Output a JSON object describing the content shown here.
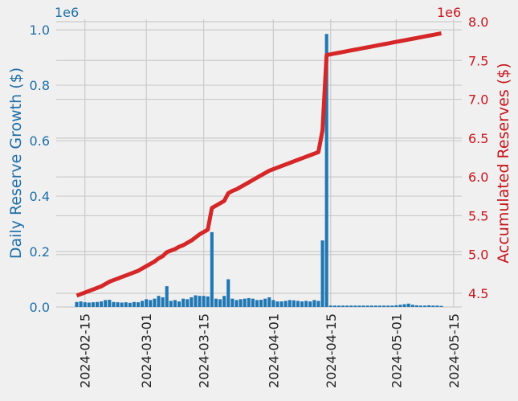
{
  "chart_data": {
    "type": "bar",
    "ylabel": "Daily Reserve Growth ($)",
    "y2label": "Accumulated Reserves ($)",
    "y_offset_label": "1e6",
    "y2_offset_label": "1e6",
    "x": [
      "2024-02-13",
      "2024-02-14",
      "2024-02-15",
      "2024-02-16",
      "2024-02-17",
      "2024-02-18",
      "2024-02-19",
      "2024-02-20",
      "2024-02-21",
      "2024-02-22",
      "2024-02-23",
      "2024-02-24",
      "2024-02-25",
      "2024-02-26",
      "2024-02-27",
      "2024-02-28",
      "2024-02-29",
      "2024-03-01",
      "2024-03-02",
      "2024-03-03",
      "2024-03-04",
      "2024-03-05",
      "2024-03-06",
      "2024-03-07",
      "2024-03-08",
      "2024-03-09",
      "2024-03-10",
      "2024-03-11",
      "2024-03-12",
      "2024-03-13",
      "2024-03-14",
      "2024-03-15",
      "2024-03-16",
      "2024-03-17",
      "2024-03-18",
      "2024-03-19",
      "2024-03-20",
      "2024-03-21",
      "2024-03-22",
      "2024-03-23",
      "2024-03-24",
      "2024-03-25",
      "2024-03-26",
      "2024-03-27",
      "2024-03-28",
      "2024-03-29",
      "2024-03-30",
      "2024-03-31",
      "2024-04-01",
      "2024-04-02",
      "2024-04-03",
      "2024-04-04",
      "2024-04-05",
      "2024-04-06",
      "2024-04-07",
      "2024-04-08",
      "2024-04-09",
      "2024-04-10",
      "2024-04-11",
      "2024-04-12",
      "2024-04-13",
      "2024-04-14",
      "2024-04-15",
      "2024-04-16",
      "2024-04-17",
      "2024-04-18",
      "2024-04-19",
      "2024-04-20",
      "2024-04-21",
      "2024-04-22",
      "2024-04-23",
      "2024-04-24",
      "2024-04-25",
      "2024-04-26",
      "2024-04-27",
      "2024-04-28",
      "2024-04-29",
      "2024-04-30",
      "2024-05-01",
      "2024-05-02",
      "2024-05-03",
      "2024-05-04",
      "2024-05-05",
      "2024-05-06",
      "2024-05-07",
      "2024-05-08",
      "2024-05-09",
      "2024-05-10",
      "2024-05-11",
      "2024-05-12"
    ],
    "series": [
      {
        "type": "bar",
        "color": "#1f77b4",
        "values": [
          18000,
          20000,
          17000,
          16000,
          17000,
          18000,
          20000,
          25000,
          26000,
          18000,
          17000,
          16000,
          17000,
          15000,
          18000,
          17000,
          22000,
          28000,
          25000,
          30000,
          40000,
          35000,
          75000,
          22000,
          25000,
          20000,
          30000,
          28000,
          35000,
          42000,
          40000,
          40000,
          38000,
          270000,
          30000,
          28000,
          40000,
          100000,
          30000,
          25000,
          28000,
          30000,
          32000,
          30000,
          25000,
          26000,
          30000,
          35000,
          25000,
          20000,
          20000,
          22000,
          25000,
          24000,
          22000,
          20000,
          22000,
          20000,
          25000,
          22000,
          240000,
          985000,
          5000,
          5000,
          5000,
          5000,
          5000,
          5000,
          5000,
          5000,
          5000,
          5000,
          5000,
          5000,
          5000,
          5000,
          5000,
          5000,
          6000,
          8000,
          10000,
          12000,
          8000,
          6000,
          5000,
          5000,
          6000,
          5000,
          5000,
          4000
        ]
      },
      {
        "type": "line",
        "axis": "y2",
        "color": "#d62728",
        "values": [
          4470000,
          4490000,
          4510000,
          4530000,
          4550000,
          4570000,
          4590000,
          4620000,
          4650000,
          4670000,
          4690000,
          4710000,
          4730000,
          4750000,
          4770000,
          4790000,
          4820000,
          4850000,
          4880000,
          4910000,
          4950000,
          4980000,
          5030000,
          5050000,
          5070000,
          5100000,
          5120000,
          5150000,
          5180000,
          5220000,
          5260000,
          5290000,
          5320000,
          5600000,
          5630000,
          5660000,
          5690000,
          5790000,
          5820000,
          5840000,
          5870000,
          5900000,
          5930000,
          5960000,
          5990000,
          6020000,
          6050000,
          6080000,
          6100000,
          6120000,
          6140000,
          6160000,
          6180000,
          6200000,
          6220000,
          6240000,
          6260000,
          6280000,
          6300000,
          6320000,
          6600000,
          7570000,
          7580000,
          7590000,
          7600000,
          7610000,
          7620000,
          7630000,
          7640000,
          7650000,
          7660000,
          7670000,
          7680000,
          7690000,
          7700000,
          7710000,
          7720000,
          7730000,
          7740000,
          7750000,
          7760000,
          7770000,
          7780000,
          7790000,
          7800000,
          7810000,
          7820000,
          7830000,
          7840000,
          7850000
        ]
      }
    ],
    "xlim": [
      "2024-02-08",
      "2024-05-17"
    ],
    "xticks": [
      "2024-02-15",
      "2024-03-01",
      "2024-03-15",
      "2024-04-01",
      "2024-04-15",
      "2024-05-01",
      "2024-05-15"
    ],
    "ylim": [
      0,
      1038000
    ],
    "yticks": [
      {
        "value": 0,
        "label": "0.0"
      },
      {
        "value": 200000,
        "label": "0.2"
      },
      {
        "value": 400000,
        "label": "0.4"
      },
      {
        "value": 600000,
        "label": "0.6"
      },
      {
        "value": 800000,
        "label": "0.8"
      },
      {
        "value": 1000000,
        "label": "1.0"
      }
    ],
    "y2lim": [
      4324000,
      8031000
    ],
    "y2ticks": [
      {
        "value": 4500000,
        "label": "4.5"
      },
      {
        "value": 5000000,
        "label": "5.0"
      },
      {
        "value": 5500000,
        "label": "5.5"
      },
      {
        "value": 6000000,
        "label": "6.0"
      },
      {
        "value": 6500000,
        "label": "6.5"
      },
      {
        "value": 7000000,
        "label": "7.0"
      },
      {
        "value": 7500000,
        "label": "7.5"
      },
      {
        "value": 8000000,
        "label": "8.0"
      }
    ],
    "grid": true,
    "y_color": "#1f6fa8",
    "y2_color": "#c8151b"
  }
}
